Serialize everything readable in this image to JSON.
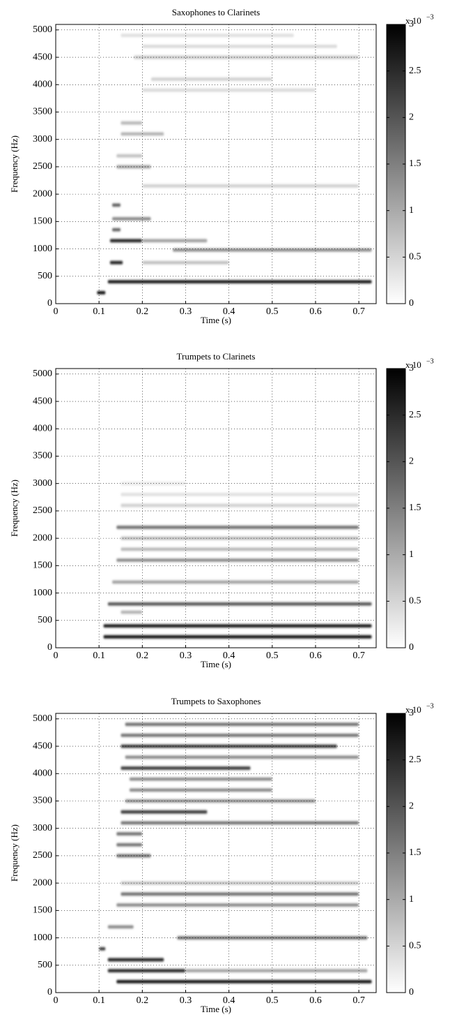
{
  "chart_data": [
    {
      "type": "spectrogram",
      "title": "Saxophones to Clarinets",
      "x_label": "Time (s)",
      "y_label": "Frequency (Hz)",
      "xlim": [
        0,
        0.74
      ],
      "ylim": [
        0,
        5100
      ],
      "xticks": [
        0,
        0.1,
        0.2,
        0.3,
        0.4,
        0.5,
        0.6,
        0.7
      ],
      "yticks": [
        0,
        500,
        1000,
        1500,
        2000,
        2500,
        3000,
        3500,
        4000,
        4500,
        5000
      ],
      "grid": true,
      "clim": [
        0,
        0.003
      ],
      "cticks": [
        {
          "value": 0,
          "label": "0"
        },
        {
          "value": 0.0005,
          "label": "0.5"
        },
        {
          "value": 0.001,
          "label": "1"
        },
        {
          "value": 0.0015,
          "label": "1.5"
        },
        {
          "value": 0.002,
          "label": "2"
        },
        {
          "value": 0.0025,
          "label": "2.5"
        },
        {
          "value": 0.003,
          "label": "3"
        }
      ],
      "colorbar_multiplier": "x 10",
      "colorbar_exponent": "−3",
      "bands": {
        "freq": [
          200,
          400,
          750,
          750,
          1150,
          1150,
          980,
          1350,
          1550,
          1800,
          2150,
          2500,
          2700,
          3100,
          3300,
          3900,
          4100,
          4500,
          4700,
          4900
        ],
        "start": [
          0.095,
          0.12,
          0.125,
          0.2,
          0.125,
          0.2,
          0.27,
          0.13,
          0.13,
          0.13,
          0.2,
          0.14,
          0.14,
          0.15,
          0.15,
          0.2,
          0.22,
          0.18,
          0.2,
          0.15
        ],
        "end": [
          0.115,
          0.73,
          0.155,
          0.4,
          0.2,
          0.35,
          0.73,
          0.15,
          0.22,
          0.15,
          0.7,
          0.22,
          0.2,
          0.25,
          0.2,
          0.6,
          0.5,
          0.7,
          0.65,
          0.55
        ],
        "level": [
          0.003,
          0.003,
          0.0028,
          0.0008,
          0.0028,
          0.0012,
          0.0015,
          0.002,
          0.0015,
          0.002,
          0.0006,
          0.0012,
          0.0008,
          0.001,
          0.0009,
          0.0005,
          0.0006,
          0.0007,
          0.0005,
          0.0004
        ]
      }
    },
    {
      "type": "spectrogram",
      "title": "Trumpets to Clarinets",
      "x_label": "Time (s)",
      "y_label": "Frequency (Hz)",
      "xlim": [
        0,
        0.74
      ],
      "ylim": [
        0,
        5100
      ],
      "xticks": [
        0,
        0.1,
        0.2,
        0.3,
        0.4,
        0.5,
        0.6,
        0.7
      ],
      "yticks": [
        0,
        500,
        1000,
        1500,
        2000,
        2500,
        3000,
        3500,
        4000,
        4500,
        5000
      ],
      "grid": true,
      "clim": [
        0,
        0.003
      ],
      "cticks": [
        {
          "value": 0,
          "label": "0"
        },
        {
          "value": 0.0005,
          "label": "0.5"
        },
        {
          "value": 0.001,
          "label": "1"
        },
        {
          "value": 0.0015,
          "label": "1.5"
        },
        {
          "value": 0.002,
          "label": "2"
        },
        {
          "value": 0.0025,
          "label": "2.5"
        },
        {
          "value": 0.003,
          "label": "3"
        }
      ],
      "colorbar_multiplier": "x 10",
      "colorbar_exponent": "−3",
      "bands": {
        "freq": [
          200,
          400,
          800,
          650,
          1200,
          1600,
          1800,
          2000,
          2200,
          2600,
          2800,
          3000
        ],
        "start": [
          0.11,
          0.11,
          0.12,
          0.15,
          0.13,
          0.14,
          0.15,
          0.15,
          0.14,
          0.15,
          0.15,
          0.15
        ],
        "end": [
          0.73,
          0.73,
          0.73,
          0.2,
          0.7,
          0.7,
          0.7,
          0.7,
          0.7,
          0.7,
          0.7,
          0.3
        ],
        "level": [
          0.003,
          0.003,
          0.0022,
          0.001,
          0.0012,
          0.0015,
          0.0009,
          0.0009,
          0.0018,
          0.0006,
          0.0004,
          0.0003
        ]
      }
    },
    {
      "type": "spectrogram",
      "title": "Trumpets to Saxophones",
      "x_label": "Time (s)",
      "y_label": "Frequency (Hz)",
      "xlim": [
        0,
        0.74
      ],
      "ylim": [
        0,
        5100
      ],
      "xticks": [
        0,
        0.1,
        0.2,
        0.3,
        0.4,
        0.5,
        0.6,
        0.7
      ],
      "yticks": [
        0,
        500,
        1000,
        1500,
        2000,
        2500,
        3000,
        3500,
        4000,
        4500,
        5000
      ],
      "grid": true,
      "clim": [
        0,
        0.003
      ],
      "cticks": [
        {
          "value": 0,
          "label": "0"
        },
        {
          "value": 0.0005,
          "label": "0.5"
        },
        {
          "value": 0.001,
          "label": "1"
        },
        {
          "value": 0.0015,
          "label": "1.5"
        },
        {
          "value": 0.002,
          "label": "2"
        },
        {
          "value": 0.0025,
          "label": "2.5"
        },
        {
          "value": 0.003,
          "label": "3"
        }
      ],
      "colorbar_multiplier": "x 10",
      "colorbar_exponent": "−3",
      "bands": {
        "freq": [
          200,
          400,
          400,
          600,
          800,
          1000,
          1200,
          1600,
          1800,
          2000,
          2500,
          2700,
          2900,
          3100,
          3300,
          3500,
          3700,
          3900,
          4100,
          4300,
          4500,
          4700,
          4900
        ],
        "start": [
          0.14,
          0.12,
          0.3,
          0.12,
          0.1,
          0.28,
          0.12,
          0.14,
          0.15,
          0.15,
          0.14,
          0.14,
          0.14,
          0.15,
          0.15,
          0.16,
          0.17,
          0.17,
          0.15,
          0.16,
          0.15,
          0.15,
          0.16
        ],
        "end": [
          0.73,
          0.3,
          0.72,
          0.25,
          0.115,
          0.72,
          0.18,
          0.7,
          0.7,
          0.7,
          0.22,
          0.2,
          0.2,
          0.7,
          0.35,
          0.6,
          0.5,
          0.5,
          0.45,
          0.7,
          0.65,
          0.7,
          0.7
        ],
        "level": [
          0.003,
          0.0028,
          0.0012,
          0.0028,
          0.0025,
          0.0018,
          0.0015,
          0.0015,
          0.0018,
          0.0008,
          0.0018,
          0.0018,
          0.0018,
          0.0018,
          0.0025,
          0.0015,
          0.0015,
          0.0015,
          0.0025,
          0.0015,
          0.0025,
          0.0018,
          0.0018
        ]
      }
    }
  ]
}
